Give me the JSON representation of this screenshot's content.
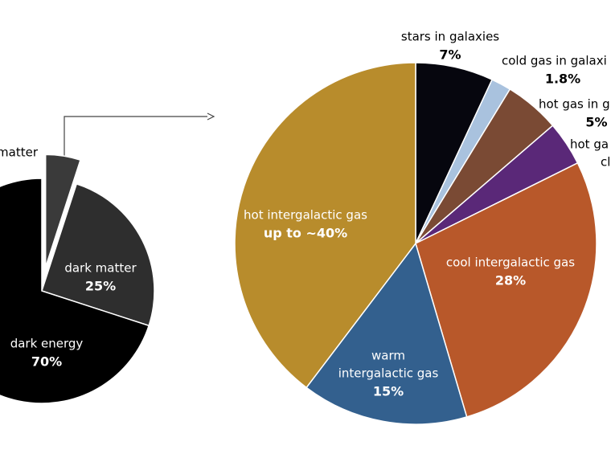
{
  "chart_data": [
    {
      "type": "pie",
      "categories": [
        "matter",
        "dark matter",
        "dark energy"
      ],
      "values": [
        5,
        25,
        70
      ],
      "value_labels": [
        null,
        "25%",
        "70%"
      ],
      "colors": [
        "#3a3a3a",
        "#2e2e2e",
        "#000000"
      ],
      "exploded": [
        true,
        false,
        false
      ]
    },
    {
      "type": "pie",
      "categories": [
        "stars in galaxies",
        "cold gas in galaxi",
        "hot gas in g",
        [
          "hot ga",
          "cl"
        ],
        "cool intergalactic gas",
        [
          "warm",
          "intergalactic gas"
        ],
        "hot intergalactic gas"
      ],
      "values": [
        7,
        1.8,
        5,
        4,
        28,
        15,
        40
      ],
      "value_labels": [
        "7%",
        "1.8%",
        "5%",
        null,
        "28%",
        "15%",
        "up to ~40%"
      ],
      "colors": [
        "#06060e",
        "#a9c2de",
        "#7a4a34",
        "#5a2878",
        "#b8582a",
        "#33608e",
        "#b88c2c"
      ],
      "exploded": [
        false,
        false,
        false,
        false,
        false,
        false,
        false
      ]
    }
  ]
}
